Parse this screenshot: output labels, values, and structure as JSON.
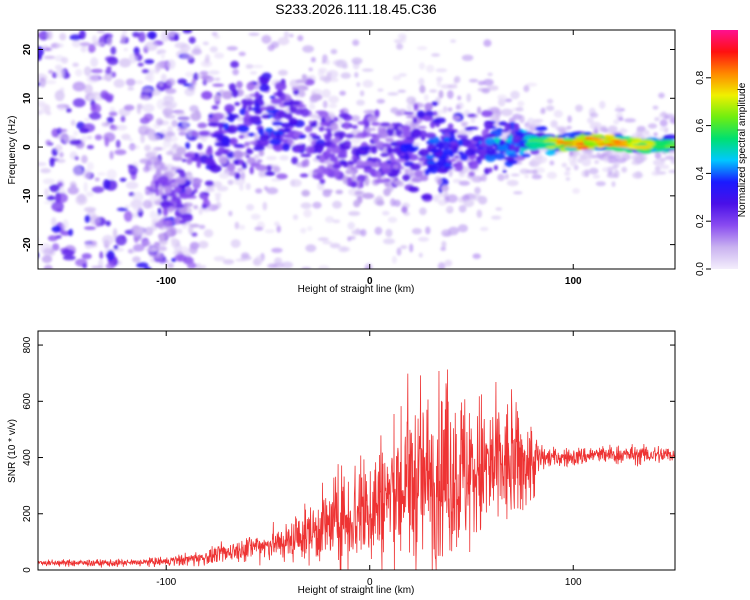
{
  "chart_data": [
    {
      "type": "heatmap",
      "title": "S233.2026.111.18.45.C36",
      "xlabel": "Height of straight line (km)",
      "ylabel": "Frequency (Hz)",
      "xlim": [
        -163,
        150
      ],
      "ylim": [
        -25,
        24
      ],
      "xticks": [
        -100,
        0,
        100
      ],
      "xtick_labels": [
        "-100",
        "0",
        "100"
      ],
      "yticks": [
        20,
        10,
        0,
        -10,
        -20
      ],
      "ytick_labels": [
        "20",
        "10",
        "0",
        "-10",
        "-20"
      ],
      "colorbar": {
        "label": "Normalized spectral amplitude",
        "range": [
          0,
          1
        ],
        "ticks": [
          0.0,
          0.2,
          0.4,
          0.6,
          0.8
        ],
        "tick_labels": [
          "0.0",
          "0.2",
          "0.4",
          "0.6",
          "0.8"
        ],
        "colors": [
          "#f4eefc",
          "#c9b2f0",
          "#8a4cf0",
          "#4a10e8",
          "#1a1aff",
          "#00c8ff",
          "#00e070",
          "#70ee10",
          "#f0f000",
          "#ff8800",
          "#ff1010",
          "#ff1090"
        ]
      },
      "trace": {
        "x": [
          -100,
          -90,
          -80,
          -70,
          -60,
          -50,
          -40,
          -30,
          -20,
          -10,
          0,
          10,
          20,
          30,
          40,
          50,
          60,
          70,
          80,
          90,
          100,
          110,
          120,
          130,
          140,
          150
        ],
        "center_hz": [
          -10,
          -8,
          0,
          4,
          5,
          6,
          4,
          2,
          0,
          0,
          -1,
          -1,
          0,
          0,
          0,
          0,
          1,
          1,
          1,
          1,
          1,
          1,
          1,
          0.5,
          0.5,
          0.5
        ],
        "amplitude": [
          0.25,
          0.3,
          0.35,
          0.35,
          0.35,
          0.4,
          0.35,
          0.3,
          0.3,
          0.3,
          0.3,
          0.3,
          0.35,
          0.4,
          0.4,
          0.35,
          0.45,
          0.5,
          0.55,
          0.7,
          0.75,
          0.8,
          0.75,
          0.7,
          0.65,
          0.6
        ],
        "band_width_hz": [
          8,
          10,
          12,
          12,
          12,
          12,
          12,
          12,
          10,
          10,
          10,
          10,
          10,
          10,
          9,
          8,
          6,
          4,
          2,
          2,
          2,
          1.5,
          1.5,
          1.5,
          1.5,
          1.5
        ]
      }
    },
    {
      "type": "line",
      "xlabel": "Height of straight line (km)",
      "ylabel": "SNR (10 * v/v)",
      "xlim": [
        -163,
        150
      ],
      "ylim": [
        0,
        850
      ],
      "xticks": [
        -100,
        0,
        100
      ],
      "xtick_labels": [
        "-100",
        "0",
        "100"
      ],
      "yticks": [
        0,
        200,
        400,
        600,
        800
      ],
      "ytick_labels": [
        "0",
        "200",
        "400",
        "600",
        "800"
      ],
      "color": "#ee3333",
      "envelope": {
        "x": [
          -163,
          -120,
          -100,
          -80,
          -60,
          -40,
          -30,
          -20,
          -10,
          0,
          10,
          20,
          30,
          40,
          50,
          60,
          70,
          80,
          85,
          90,
          100,
          110,
          120,
          130,
          140,
          150
        ],
        "mean": [
          25,
          25,
          30,
          45,
          80,
          100,
          130,
          160,
          190,
          220,
          260,
          300,
          330,
          340,
          350,
          360,
          370,
          380,
          400,
          400,
          400,
          410,
          410,
          410,
          410,
          410
        ],
        "spread": [
          10,
          12,
          15,
          25,
          40,
          60,
          90,
          130,
          170,
          200,
          230,
          260,
          280,
          280,
          260,
          230,
          200,
          130,
          40,
          30,
          30,
          30,
          30,
          30,
          30,
          30
        ]
      }
    }
  ]
}
